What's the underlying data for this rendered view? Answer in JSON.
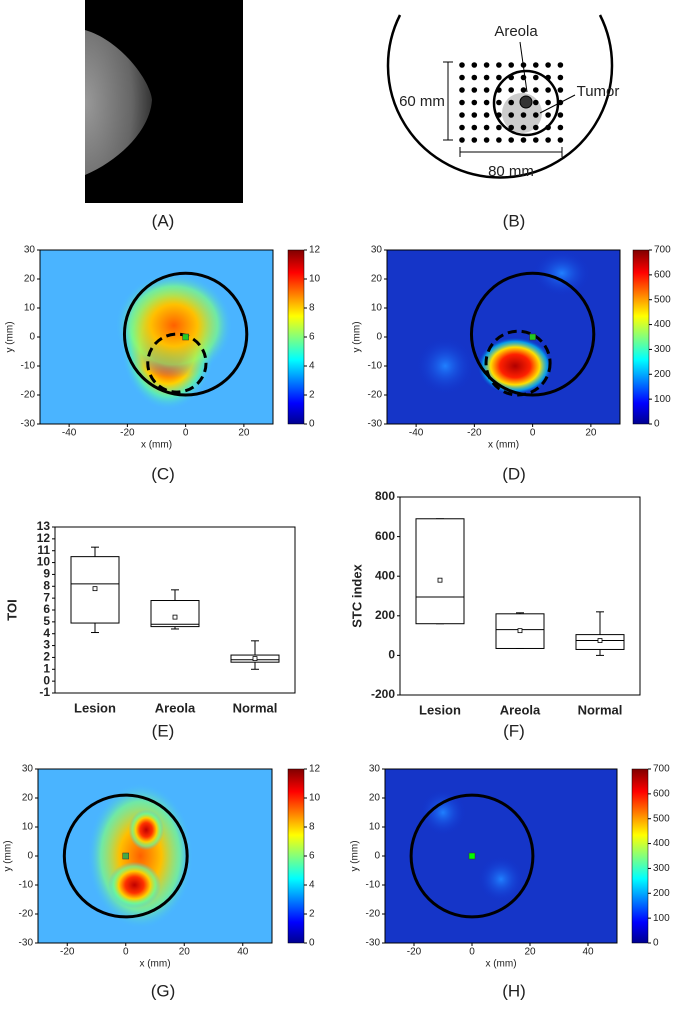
{
  "figure": {
    "labels": [
      "(A)",
      "(B)",
      "(C)",
      "(D)",
      "(E)",
      "(F)",
      "(G)",
      "(H)"
    ],
    "diagram": {
      "areola": "Areola",
      "tumor": "Tumor",
      "height": "60 mm",
      "width": "80 mm"
    }
  },
  "chart_data": [
    {
      "type": "heatmap",
      "xlabel": "x (mm)",
      "ylabel": "y (mm)",
      "xlim": [
        -50,
        30
      ],
      "xticks": [
        -40,
        -20,
        0,
        20
      ],
      "ylim": [
        -30,
        30
      ],
      "yticks": [
        -30,
        -20,
        -10,
        0,
        10,
        20,
        30
      ],
      "clim": [
        0,
        12
      ],
      "cticks": [
        0,
        2,
        4,
        6,
        8,
        10,
        12
      ]
    },
    {
      "type": "heatmap",
      "xlabel": "x (mm)",
      "ylabel": "y (mm)",
      "xlim": [
        -50,
        30
      ],
      "xticks": [
        -40,
        -20,
        0,
        20
      ],
      "ylim": [
        -30,
        30
      ],
      "yticks": [
        -30,
        -20,
        -10,
        0,
        10,
        20,
        30
      ],
      "clim": [
        0,
        700
      ],
      "cticks": [
        0,
        100,
        200,
        300,
        400,
        500,
        600,
        700
      ]
    },
    {
      "type": "box",
      "ylabel": "TOI",
      "categories": [
        "Lesion",
        "Areola",
        "Normal"
      ],
      "ylim": [
        -1,
        13
      ],
      "yticks": [
        -1,
        0,
        1,
        2,
        3,
        4,
        5,
        6,
        7,
        8,
        9,
        10,
        11,
        12,
        13
      ],
      "boxes": [
        {
          "min": 4.1,
          "q1": 4.9,
          "median": 8.2,
          "q3": 10.5,
          "max": 11.3,
          "mean": 7.8
        },
        {
          "min": 4.4,
          "q1": 4.6,
          "median": 4.8,
          "q3": 6.8,
          "max": 7.7,
          "mean": 5.4
        },
        {
          "min": 1.0,
          "q1": 1.6,
          "median": 1.8,
          "q3": 2.2,
          "max": 3.4,
          "mean": 1.9
        }
      ]
    },
    {
      "type": "box",
      "ylabel": "STC index",
      "categories": [
        "Lesion",
        "Areola",
        "Normal"
      ],
      "ylim": [
        -200,
        800
      ],
      "yticks": [
        -200,
        0,
        200,
        400,
        600,
        800
      ],
      "boxes": [
        {
          "min": 160,
          "q1": 160,
          "median": 295,
          "q3": 690,
          "max": 690,
          "mean": 380
        },
        {
          "min": 35,
          "q1": 35,
          "median": 130,
          "q3": 210,
          "max": 215,
          "mean": 125
        },
        {
          "min": 0,
          "q1": 30,
          "median": 75,
          "q3": 105,
          "max": 220,
          "mean": 75
        }
      ]
    },
    {
      "type": "heatmap",
      "xlabel": "x (mm)",
      "ylabel": "y (mm)",
      "xlim": [
        -30,
        50
      ],
      "xticks": [
        -20,
        0,
        20,
        40
      ],
      "ylim": [
        -30,
        30
      ],
      "yticks": [
        -30,
        -20,
        -10,
        0,
        10,
        20,
        30
      ],
      "clim": [
        0,
        12
      ],
      "cticks": [
        0,
        2,
        4,
        6,
        8,
        10,
        12
      ]
    },
    {
      "type": "heatmap",
      "xlabel": "x (mm)",
      "ylabel": "y (mm)",
      "xlim": [
        -30,
        50
      ],
      "xticks": [
        -20,
        0,
        20,
        40
      ],
      "ylim": [
        -30,
        30
      ],
      "yticks": [
        -30,
        -20,
        -10,
        0,
        10,
        20,
        30
      ],
      "clim": [
        0,
        700
      ],
      "cticks": [
        0,
        100,
        200,
        300,
        400,
        500,
        600,
        700
      ]
    }
  ]
}
